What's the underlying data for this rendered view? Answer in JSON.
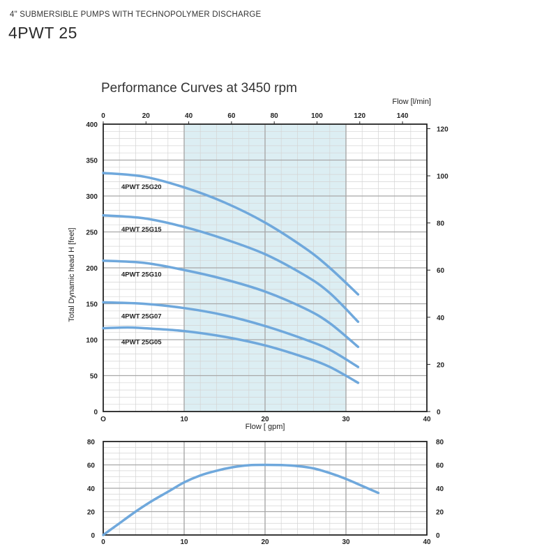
{
  "header": {
    "subtitle": "4\" SUBMERSIBLE PUMPS WITH TECHNOPOLYMER DISCHARGE",
    "model": "4PWT 25"
  },
  "chart_data": [
    {
      "type": "line",
      "title": "Performance Curves at 3450 rpm",
      "xlabel": "Flow [ gpm]",
      "ylabel": "Total Dynamic head H [feet]",
      "x2label": "Flow [l/min]",
      "xlim": [
        0,
        40
      ],
      "ylim": [
        0,
        400
      ],
      "x_ticks": [
        "O",
        "10",
        "20",
        "30",
        "40"
      ],
      "y_ticks": [
        "0",
        "50",
        "100",
        "150",
        "200",
        "250",
        "300",
        "350",
        "400"
      ],
      "x2_ticks": [
        "0",
        "20",
        "40",
        "60",
        "80",
        "100",
        "120",
        "140"
      ],
      "y2_ticks": [
        "0",
        "20",
        "40",
        "60",
        "80",
        "100",
        "120"
      ],
      "x2_unit_per_gpm": 3.785,
      "y2_unit_per_foot": 0.3048,
      "grid": true,
      "highlight_band": {
        "x_from": 10,
        "x_to": 30,
        "color": "#dceef3"
      },
      "curve_color": "#6fa8dc",
      "series": [
        {
          "name": "4PWT 25G20",
          "x": [
            0,
            5,
            10,
            15,
            20,
            25,
            28,
            31.5
          ],
          "y": [
            332,
            327,
            312,
            291,
            263,
            227,
            200,
            163
          ]
        },
        {
          "name": "4PWT 25G15",
          "x": [
            0,
            5,
            10,
            15,
            20,
            25,
            28,
            31.5
          ],
          "y": [
            273,
            269,
            257,
            240,
            219,
            189,
            165,
            125
          ]
        },
        {
          "name": "4PWT 25G10",
          "x": [
            0,
            5,
            10,
            15,
            20,
            25,
            28,
            31.5
          ],
          "y": [
            210,
            207,
            197,
            184,
            167,
            143,
            123,
            90
          ]
        },
        {
          "name": "4PWT 25G07",
          "x": [
            0,
            5,
            10,
            15,
            20,
            25,
            28,
            31.5
          ],
          "y": [
            152,
            150,
            144,
            134,
            119,
            100,
            86,
            62
          ]
        },
        {
          "name": "4PWT 25G05",
          "x": [
            0,
            3,
            5,
            10,
            15,
            20,
            25,
            28,
            31.5
          ],
          "y": [
            116,
            117,
            116,
            112,
            104,
            92,
            75,
            62,
            40
          ]
        }
      ]
    },
    {
      "type": "line",
      "title": "",
      "xlabel": "",
      "ylabel": "",
      "xlim": [
        0,
        40
      ],
      "ylim": [
        0,
        80
      ],
      "x_ticks": [
        "0",
        "10",
        "20",
        "30",
        "40"
      ],
      "y_ticks": [
        "0",
        "20",
        "40",
        "60",
        "80"
      ],
      "y2_ticks": [
        "0",
        "20",
        "40",
        "60",
        "80"
      ],
      "grid": true,
      "curve_color": "#6fa8dc",
      "series": [
        {
          "name": "",
          "x": [
            0,
            1,
            2,
            4,
            6,
            8,
            10,
            12,
            14,
            16,
            18,
            20,
            22,
            24,
            26,
            28,
            30,
            32,
            34
          ],
          "y": [
            0,
            5,
            10,
            20,
            29,
            37,
            45,
            51,
            55,
            58,
            59.7,
            60,
            59.8,
            59,
            57,
            53,
            48,
            42,
            36
          ]
        }
      ]
    }
  ]
}
